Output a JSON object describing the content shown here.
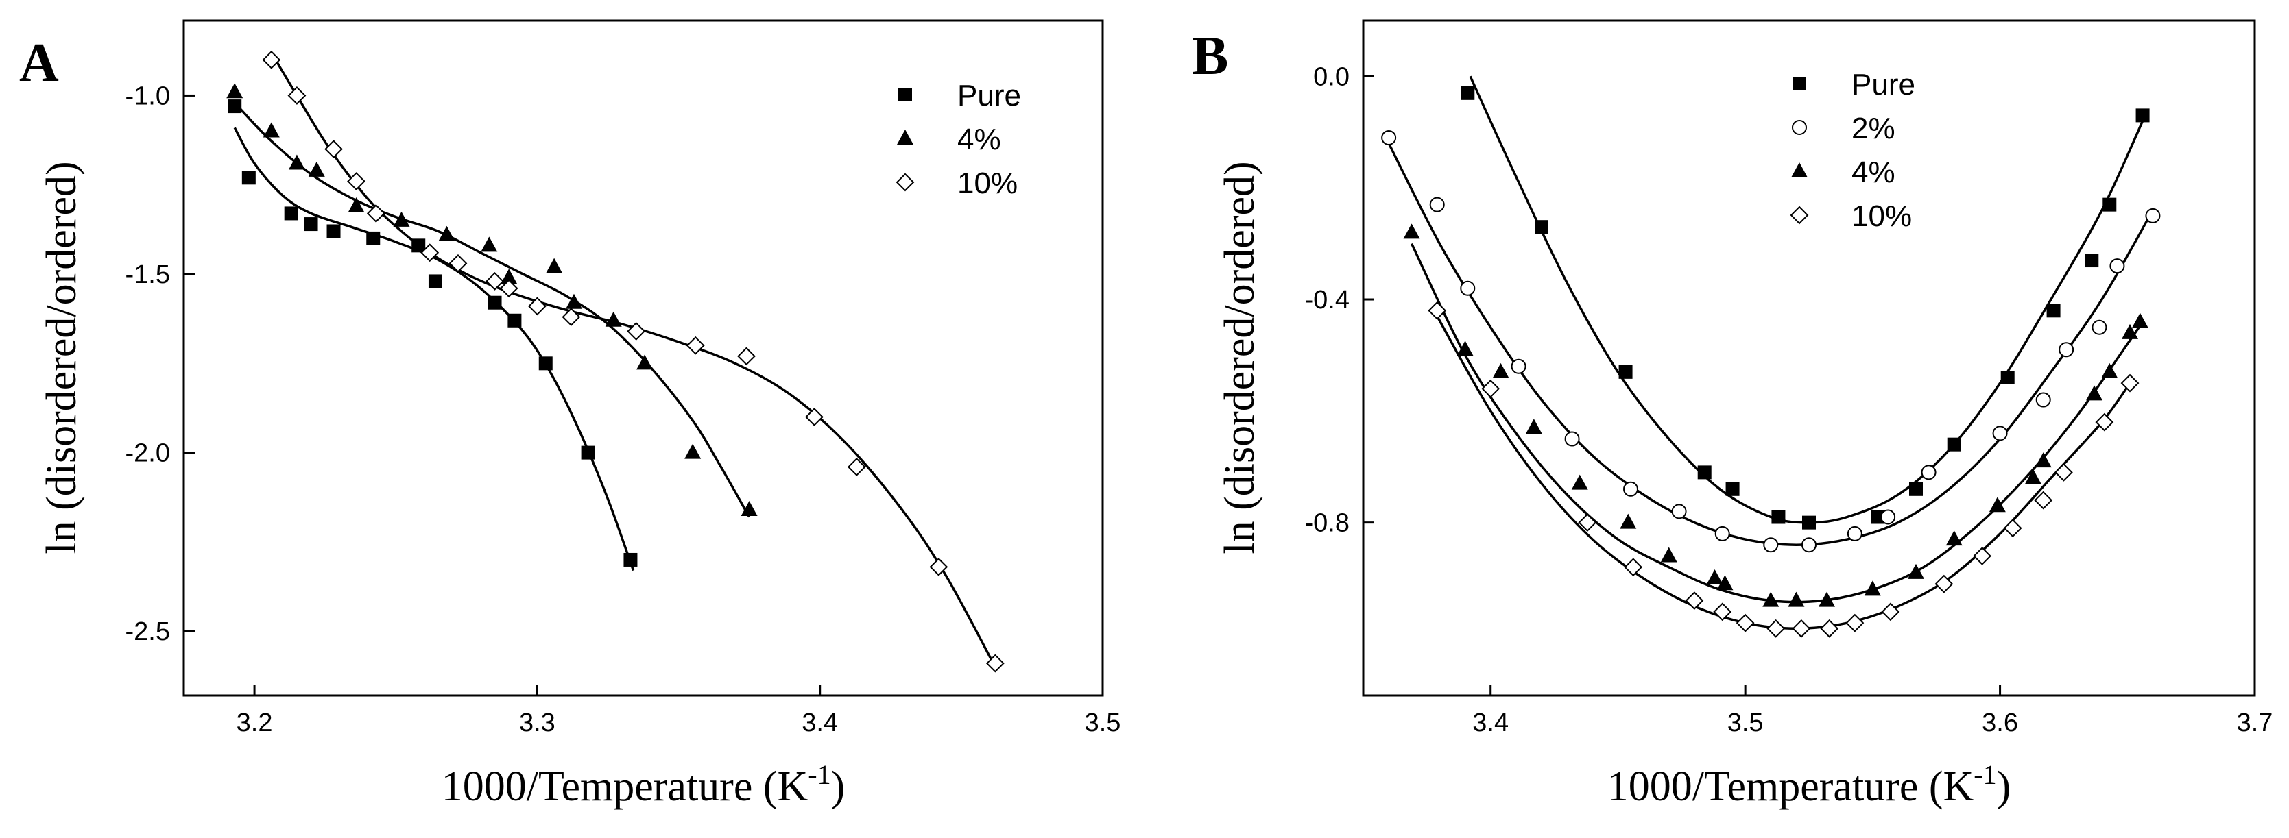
{
  "chart_data": [
    {
      "type": "scatter",
      "panel_label": "A",
      "xlabel": "1000/Temperature (K",
      "xlabel_sup": "-1",
      "xlabel_close": ")",
      "ylabel": "ln (disordered/ordered)",
      "xlim": [
        3.175,
        3.5
      ],
      "ylim": [
        -2.68,
        -0.79
      ],
      "xticks": [
        3.2,
        3.3,
        3.4,
        3.5
      ],
      "xtick_labels": [
        "3.2",
        "3.3",
        "3.4",
        "3.5"
      ],
      "yticks": [
        -1.0,
        -1.5,
        -2.0,
        -2.5
      ],
      "ytick_labels": [
        "-1.0",
        "-1.5",
        "-2.0",
        "-2.5"
      ],
      "legend_position": "top-right",
      "series": [
        {
          "name": "Pure",
          "marker": "square",
          "points": [
            [
              3.193,
              -1.03
            ],
            [
              3.198,
              -1.23
            ],
            [
              3.213,
              -1.33
            ],
            [
              3.22,
              -1.36
            ],
            [
              3.228,
              -1.38
            ],
            [
              3.242,
              -1.4
            ],
            [
              3.258,
              -1.42
            ],
            [
              3.264,
              -1.52
            ],
            [
              3.285,
              -1.58
            ],
            [
              3.292,
              -1.63
            ],
            [
              3.303,
              -1.75
            ],
            [
              3.318,
              -2.0
            ],
            [
              3.333,
              -2.3
            ]
          ],
          "fit": [
            [
              3.193,
              -1.09
            ],
            [
              3.2,
              -1.19
            ],
            [
              3.21,
              -1.28
            ],
            [
              3.22,
              -1.33
            ],
            [
              3.235,
              -1.37
            ],
            [
              3.25,
              -1.41
            ],
            [
              3.265,
              -1.46
            ],
            [
              3.28,
              -1.54
            ],
            [
              3.295,
              -1.66
            ],
            [
              3.305,
              -1.78
            ],
            [
              3.315,
              -1.94
            ],
            [
              3.325,
              -2.13
            ],
            [
              3.334,
              -2.33
            ]
          ]
        },
        {
          "name": "4%",
          "marker": "triangle",
          "points": [
            [
              3.193,
              -0.99
            ],
            [
              3.206,
              -1.1
            ],
            [
              3.215,
              -1.19
            ],
            [
              3.222,
              -1.21
            ],
            [
              3.236,
              -1.31
            ],
            [
              3.252,
              -1.35
            ],
            [
              3.268,
              -1.39
            ],
            [
              3.283,
              -1.42
            ],
            [
              3.29,
              -1.51
            ],
            [
              3.306,
              -1.48
            ],
            [
              3.313,
              -1.58
            ],
            [
              3.327,
              -1.63
            ],
            [
              3.338,
              -1.75
            ],
            [
              3.355,
              -2.0
            ],
            [
              3.375,
              -2.16
            ]
          ],
          "fit": [
            [
              3.193,
              -1.02
            ],
            [
              3.205,
              -1.12
            ],
            [
              3.22,
              -1.22
            ],
            [
              3.235,
              -1.29
            ],
            [
              3.25,
              -1.34
            ],
            [
              3.265,
              -1.38
            ],
            [
              3.28,
              -1.44
            ],
            [
              3.295,
              -1.5
            ],
            [
              3.31,
              -1.56
            ],
            [
              3.325,
              -1.64
            ],
            [
              3.34,
              -1.76
            ],
            [
              3.355,
              -1.91
            ],
            [
              3.365,
              -2.04
            ],
            [
              3.375,
              -2.18
            ]
          ]
        },
        {
          "name": "10%",
          "marker": "diamond",
          "points": [
            [
              3.206,
              -0.9
            ],
            [
              3.215,
              -1.0
            ],
            [
              3.228,
              -1.15
            ],
            [
              3.236,
              -1.24
            ],
            [
              3.243,
              -1.33
            ],
            [
              3.262,
              -1.44
            ],
            [
              3.272,
              -1.47
            ],
            [
              3.285,
              -1.52
            ],
            [
              3.29,
              -1.54
            ],
            [
              3.3,
              -1.59
            ],
            [
              3.312,
              -1.62
            ],
            [
              3.335,
              -1.66
            ],
            [
              3.356,
              -1.7
            ],
            [
              3.374,
              -1.73
            ],
            [
              3.398,
              -1.9
            ],
            [
              3.413,
              -2.04
            ],
            [
              3.442,
              -2.32
            ],
            [
              3.462,
              -2.59
            ]
          ],
          "fit": [
            [
              3.206,
              -0.88
            ],
            [
              3.215,
              -1.0
            ],
            [
              3.225,
              -1.13
            ],
            [
              3.235,
              -1.24
            ],
            [
              3.245,
              -1.33
            ],
            [
              3.26,
              -1.43
            ],
            [
              3.275,
              -1.5
            ],
            [
              3.29,
              -1.55
            ],
            [
              3.31,
              -1.6
            ],
            [
              3.33,
              -1.64
            ],
            [
              3.35,
              -1.69
            ],
            [
              3.37,
              -1.75
            ],
            [
              3.39,
              -1.84
            ],
            [
              3.41,
              -1.98
            ],
            [
              3.43,
              -2.17
            ],
            [
              3.445,
              -2.35
            ],
            [
              3.462,
              -2.6
            ]
          ]
        }
      ]
    },
    {
      "type": "scatter",
      "panel_label": "B",
      "xlabel": "1000/Temperature (K",
      "xlabel_sup": "-1",
      "xlabel_close": ")",
      "ylabel": "ln (disordered/ordered)",
      "xlim": [
        3.35,
        3.7
      ],
      "ylim": [
        -1.11,
        0.1
      ],
      "xticks": [
        3.4,
        3.5,
        3.6,
        3.7
      ],
      "xtick_labels": [
        "3.4",
        "3.5",
        "3.6",
        "3.7"
      ],
      "yticks": [
        0.0,
        -0.4,
        -0.8
      ],
      "ytick_labels": [
        "0.0",
        "-0.4",
        "-0.8"
      ],
      "legend_position": "top-right",
      "series": [
        {
          "name": "Pure",
          "marker": "square",
          "points": [
            [
              3.391,
              -0.03
            ],
            [
              3.42,
              -0.27
            ],
            [
              3.453,
              -0.53
            ],
            [
              3.484,
              -0.71
            ],
            [
              3.495,
              -0.74
            ],
            [
              3.513,
              -0.79
            ],
            [
              3.525,
              -0.8
            ],
            [
              3.552,
              -0.79
            ],
            [
              3.567,
              -0.74
            ],
            [
              3.582,
              -0.66
            ],
            [
              3.603,
              -0.54
            ],
            [
              3.621,
              -0.42
            ],
            [
              3.636,
              -0.33
            ],
            [
              3.643,
              -0.23
            ],
            [
              3.656,
              -0.07
            ]
          ],
          "fit": [
            [
              3.392,
              0.0
            ],
            [
              3.41,
              -0.18
            ],
            [
              3.43,
              -0.37
            ],
            [
              3.45,
              -0.53
            ],
            [
              3.47,
              -0.65
            ],
            [
              3.49,
              -0.74
            ],
            [
              3.51,
              -0.79
            ],
            [
              3.525,
              -0.8
            ],
            [
              3.54,
              -0.79
            ],
            [
              3.56,
              -0.75
            ],
            [
              3.58,
              -0.67
            ],
            [
              3.6,
              -0.55
            ],
            [
              3.62,
              -0.4
            ],
            [
              3.64,
              -0.24
            ],
            [
              3.656,
              -0.08
            ]
          ]
        },
        {
          "name": "2%",
          "marker": "circle",
          "points": [
            [
              3.36,
              -0.11
            ],
            [
              3.379,
              -0.23
            ],
            [
              3.391,
              -0.38
            ],
            [
              3.411,
              -0.52
            ],
            [
              3.432,
              -0.65
            ],
            [
              3.455,
              -0.74
            ],
            [
              3.474,
              -0.78
            ],
            [
              3.491,
              -0.82
            ],
            [
              3.51,
              -0.84
            ],
            [
              3.525,
              -0.84
            ],
            [
              3.543,
              -0.82
            ],
            [
              3.556,
              -0.79
            ],
            [
              3.572,
              -0.71
            ],
            [
              3.6,
              -0.64
            ],
            [
              3.617,
              -0.58
            ],
            [
              3.626,
              -0.49
            ],
            [
              3.639,
              -0.45
            ],
            [
              3.646,
              -0.34
            ],
            [
              3.66,
              -0.25
            ]
          ],
          "fit": [
            [
              3.36,
              -0.12
            ],
            [
              3.38,
              -0.3
            ],
            [
              3.4,
              -0.45
            ],
            [
              3.42,
              -0.58
            ],
            [
              3.44,
              -0.68
            ],
            [
              3.46,
              -0.75
            ],
            [
              3.48,
              -0.8
            ],
            [
              3.5,
              -0.83
            ],
            [
              3.52,
              -0.84
            ],
            [
              3.54,
              -0.83
            ],
            [
              3.56,
              -0.8
            ],
            [
              3.58,
              -0.74
            ],
            [
              3.6,
              -0.65
            ],
            [
              3.62,
              -0.53
            ],
            [
              3.64,
              -0.4
            ],
            [
              3.66,
              -0.24
            ]
          ]
        },
        {
          "name": "4%",
          "marker": "triangle",
          "points": [
            [
              3.369,
              -0.28
            ],
            [
              3.39,
              -0.49
            ],
            [
              3.404,
              -0.53
            ],
            [
              3.417,
              -0.63
            ],
            [
              3.435,
              -0.73
            ],
            [
              3.454,
              -0.8
            ],
            [
              3.47,
              -0.86
            ],
            [
              3.488,
              -0.9
            ],
            [
              3.492,
              -0.91
            ],
            [
              3.51,
              -0.94
            ],
            [
              3.52,
              -0.94
            ],
            [
              3.532,
              -0.94
            ],
            [
              3.55,
              -0.92
            ],
            [
              3.567,
              -0.89
            ],
            [
              3.582,
              -0.83
            ],
            [
              3.599,
              -0.77
            ],
            [
              3.613,
              -0.72
            ],
            [
              3.617,
              -0.69
            ],
            [
              3.637,
              -0.57
            ],
            [
              3.643,
              -0.53
            ],
            [
              3.651,
              -0.46
            ],
            [
              3.655,
              -0.44
            ]
          ],
          "fit": [
            [
              3.369,
              -0.3
            ],
            [
              3.39,
              -0.5
            ],
            [
              3.41,
              -0.64
            ],
            [
              3.43,
              -0.75
            ],
            [
              3.45,
              -0.83
            ],
            [
              3.47,
              -0.88
            ],
            [
              3.49,
              -0.92
            ],
            [
              3.51,
              -0.94
            ],
            [
              3.53,
              -0.94
            ],
            [
              3.55,
              -0.92
            ],
            [
              3.57,
              -0.88
            ],
            [
              3.59,
              -0.81
            ],
            [
              3.61,
              -0.72
            ],
            [
              3.63,
              -0.61
            ],
            [
              3.65,
              -0.48
            ],
            [
              3.656,
              -0.44
            ]
          ]
        },
        {
          "name": "10%",
          "marker": "diamond",
          "points": [
            [
              3.379,
              -0.42
            ],
            [
              3.4,
              -0.56
            ],
            [
              3.438,
              -0.8
            ],
            [
              3.456,
              -0.88
            ],
            [
              3.48,
              -0.94
            ],
            [
              3.491,
              -0.96
            ],
            [
              3.5,
              -0.98
            ],
            [
              3.512,
              -0.99
            ],
            [
              3.522,
              -0.99
            ],
            [
              3.533,
              -0.99
            ],
            [
              3.543,
              -0.98
            ],
            [
              3.557,
              -0.96
            ],
            [
              3.578,
              -0.91
            ],
            [
              3.593,
              -0.86
            ],
            [
              3.605,
              -0.81
            ],
            [
              3.617,
              -0.76
            ],
            [
              3.625,
              -0.71
            ],
            [
              3.641,
              -0.62
            ],
            [
              3.651,
              -0.55
            ]
          ],
          "fit": [
            [
              3.379,
              -0.43
            ],
            [
              3.4,
              -0.6
            ],
            [
              3.42,
              -0.73
            ],
            [
              3.44,
              -0.83
            ],
            [
              3.46,
              -0.9
            ],
            [
              3.48,
              -0.95
            ],
            [
              3.5,
              -0.98
            ],
            [
              3.52,
              -0.99
            ],
            [
              3.54,
              -0.98
            ],
            [
              3.56,
              -0.95
            ],
            [
              3.58,
              -0.9
            ],
            [
              3.6,
              -0.82
            ],
            [
              3.62,
              -0.72
            ],
            [
              3.64,
              -0.62
            ],
            [
              3.651,
              -0.55
            ]
          ]
        }
      ]
    }
  ]
}
